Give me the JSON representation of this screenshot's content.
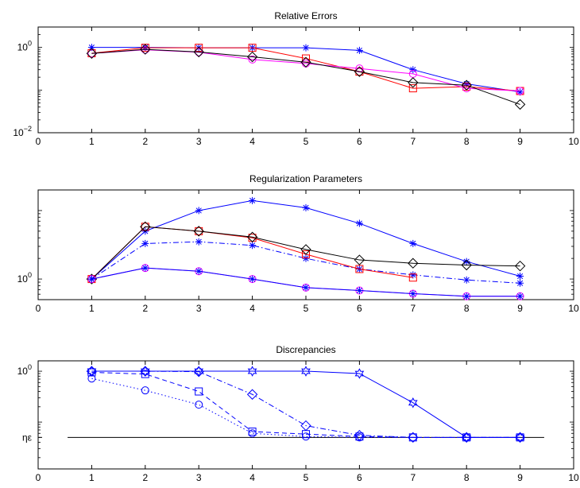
{
  "chart_data": [
    {
      "type": "line",
      "title": "Relative Errors",
      "xlabel": "",
      "ylabel": "",
      "xlim": [
        0,
        10
      ],
      "xticks": [
        0,
        1,
        2,
        3,
        4,
        5,
        6,
        7,
        8,
        9,
        10
      ],
      "ylim": [
        0.01,
        3
      ],
      "yscale": "log",
      "yticks": [
        {
          "value": 1,
          "base": "10",
          "exp": "0"
        },
        {
          "value": 0.01,
          "base": "10",
          "exp": "−2"
        }
      ],
      "grid": false,
      "x": [
        1,
        2,
        3,
        4,
        5,
        6,
        7,
        8,
        9
      ],
      "series": [
        {
          "color": "#0000ff",
          "line": "solid",
          "marker": "asterisk",
          "values": [
            1.0,
            1.0,
            0.98,
            0.98,
            0.98,
            0.85,
            0.3,
            0.14,
            0.09
          ]
        },
        {
          "color": "#ff0000",
          "line": "solid",
          "marker": "square",
          "values": [
            0.73,
            0.98,
            0.98,
            0.98,
            0.55,
            0.27,
            0.11,
            0.12,
            0.095
          ]
        },
        {
          "color": "#ff00ff",
          "line": "solid",
          "marker": "circle",
          "values": [
            0.72,
            0.88,
            0.77,
            0.52,
            0.42,
            0.32,
            0.24,
            0.11,
            0.095
          ]
        },
        {
          "color": "#000000",
          "line": "solid",
          "marker": "diamond",
          "values": [
            0.72,
            0.9,
            0.78,
            0.6,
            0.45,
            0.27,
            0.15,
            0.13,
            0.046
          ]
        }
      ]
    },
    {
      "type": "line",
      "title": "Regularization Parameters",
      "xlabel": "",
      "ylabel": "",
      "xlim": [
        0,
        10
      ],
      "xticks": [
        0,
        1,
        2,
        3,
        4,
        5,
        6,
        7,
        8,
        9,
        10
      ],
      "ylim": [
        0.5,
        20
      ],
      "yscale": "log",
      "yticks": [
        {
          "value": 1,
          "base": "10",
          "exp": "0"
        }
      ],
      "grid": false,
      "x": [
        1,
        2,
        3,
        4,
        5,
        6,
        7,
        8,
        9
      ],
      "series": [
        {
          "color": "#0000ff",
          "line": "solid",
          "marker": "asterisk",
          "values": [
            1.0,
            5.0,
            10.0,
            14.0,
            11.0,
            6.5,
            3.3,
            1.8,
            1.1
          ]
        },
        {
          "color": "#0000ff",
          "line": "dashdot",
          "marker": "asterisk",
          "values": [
            1.0,
            3.3,
            3.5,
            3.1,
            2.0,
            1.4,
            1.15,
            0.97,
            0.87
          ]
        },
        {
          "color": "#ff0000",
          "line": "solid",
          "marker": "square",
          "values": [
            1.0,
            5.8,
            5.0,
            4.0,
            2.3,
            1.4,
            1.05,
            null,
            null
          ]
        },
        {
          "color": "#000000",
          "line": "solid",
          "marker": "diamond",
          "values": [
            1.0,
            5.8,
            5.0,
            4.1,
            2.7,
            1.9,
            1.7,
            1.6,
            1.55
          ]
        },
        {
          "color": "#ff00ff",
          "line": "solid",
          "marker": "circle",
          "values": [
            1.0,
            1.45,
            1.3,
            1.0,
            0.75,
            0.68,
            0.61,
            0.56,
            0.56
          ]
        },
        {
          "color": "#0000ff",
          "line": "solid",
          "marker": "asterisk",
          "values": [
            1.0,
            1.45,
            1.3,
            1.0,
            0.75,
            0.68,
            0.61,
            0.56,
            0.56
          ]
        }
      ]
    },
    {
      "type": "line",
      "title": "Discrepancies",
      "xlabel": "",
      "ylabel": "",
      "xlim": [
        0,
        10
      ],
      "xticks": [
        0,
        1,
        2,
        3,
        4,
        5,
        6,
        7,
        8,
        9,
        10
      ],
      "ylim": [
        0.012,
        1.6
      ],
      "yscale": "log",
      "yticks": [
        {
          "value": 1,
          "base": "10",
          "exp": "0"
        },
        {
          "value": 0.05,
          "label": "ηε"
        }
      ],
      "grid": false,
      "x": [
        1,
        2,
        3,
        4,
        5,
        6,
        7,
        8,
        9
      ],
      "reference_line": {
        "label": "ηε",
        "value": 0.05,
        "x": [
          0.55,
          9.45
        ],
        "color": "#000000"
      },
      "series": [
        {
          "color": "#0000ff",
          "line": "solid",
          "marker": "star",
          "values": [
            1.0,
            1.0,
            1.0,
            1.0,
            1.0,
            0.9,
            0.24,
            0.05,
            0.05
          ]
        },
        {
          "color": "#0000ff",
          "line": "dashdot",
          "marker": "diamond",
          "values": [
            1.0,
            1.0,
            0.98,
            0.35,
            0.085,
            0.055,
            0.05,
            0.05,
            0.05
          ]
        },
        {
          "color": "#0000ff",
          "line": "dashed",
          "marker": "square",
          "values": [
            0.95,
            0.88,
            0.4,
            0.065,
            0.058,
            0.052,
            0.05,
            0.05,
            0.05
          ]
        },
        {
          "color": "#0000ff",
          "line": "dotted",
          "marker": "circle",
          "values": [
            0.72,
            0.42,
            0.22,
            0.06,
            0.052,
            0.05,
            0.05,
            0.05,
            0.05
          ]
        }
      ]
    }
  ]
}
